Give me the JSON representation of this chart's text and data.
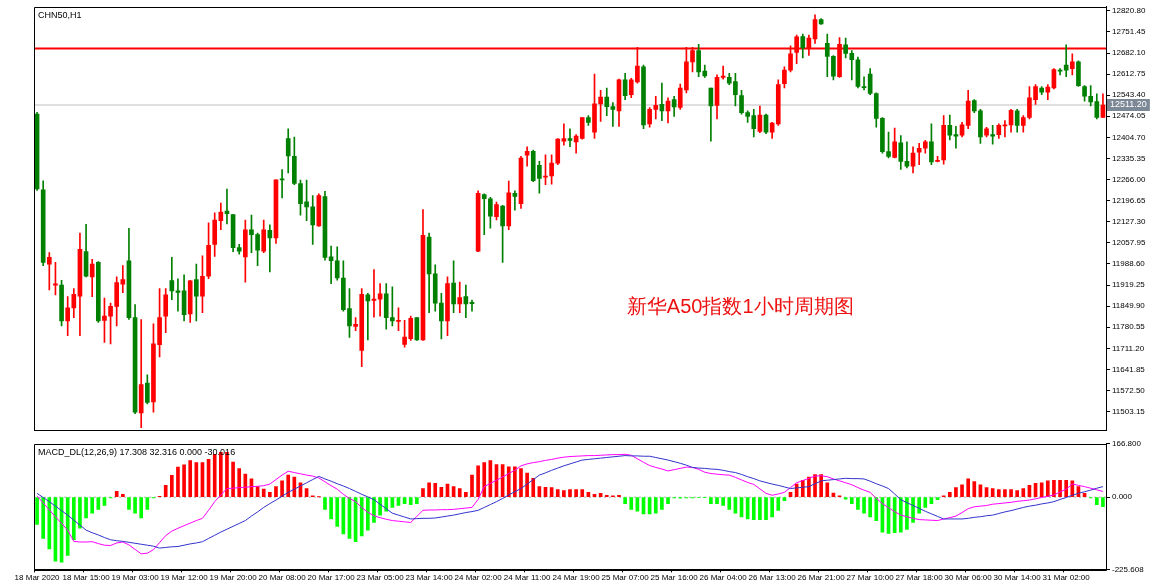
{
  "chart_data": [
    {
      "type": "candlestick",
      "title": "CHN50,H1",
      "categories": [
        null,
        null,
        null,
        null,
        null,
        null,
        null,
        null,
        null,
        null,
        null,
        null,
        null,
        null,
        null,
        null,
        null,
        null,
        null,
        null,
        null,
        null,
        null,
        null,
        null,
        null,
        null,
        null,
        null,
        null,
        null,
        null,
        null,
        null,
        null,
        null,
        null,
        null,
        null,
        null,
        null,
        null,
        null,
        null,
        null,
        null,
        null,
        null,
        null,
        null,
        null,
        null,
        null,
        null,
        null,
        null,
        null,
        null,
        null,
        null,
        null,
        null,
        null,
        null,
        null,
        null,
        null,
        null,
        null,
        null,
        null,
        null,
        null,
        null,
        null,
        null,
        null,
        null,
        null,
        null,
        null,
        null,
        null,
        null,
        null,
        null,
        null,
        null,
        null,
        null,
        null,
        null,
        null,
        null,
        null,
        null,
        null,
        null,
        null,
        null,
        null,
        null,
        null,
        null,
        null,
        null,
        null,
        null,
        null,
        null,
        null,
        null,
        null,
        null,
        null,
        null,
        null,
        null,
        null,
        null,
        null,
        null,
        null,
        null,
        null,
        null,
        null,
        null,
        null,
        null,
        null,
        null,
        null,
        null,
        null,
        null,
        null,
        null,
        null,
        null,
        null,
        null,
        null,
        null,
        null,
        null,
        null,
        null,
        null,
        null,
        null,
        null,
        null,
        null,
        null,
        null,
        null,
        null,
        null,
        null,
        null,
        null,
        null,
        null,
        null,
        null,
        null,
        null,
        null,
        null,
        null,
        null,
        null,
        null,
        null
      ],
      "ohlc": [
        [
          12481,
          12487,
          12230,
          12235
        ],
        [
          12232,
          12262,
          11983,
          11994
        ],
        [
          11988,
          12026,
          11903,
          12010
        ],
        [
          11919,
          11994,
          11887,
          11923
        ],
        [
          11919,
          11935,
          11785,
          11801
        ],
        [
          11801,
          11881,
          11753,
          11844
        ],
        [
          11844,
          11908,
          11812,
          11889
        ],
        [
          11883,
          12090,
          11753,
          12037
        ],
        [
          12029,
          12119,
          11946,
          11948
        ],
        [
          11946,
          12004,
          11881,
          11988
        ],
        [
          11994,
          11996,
          11796,
          11801
        ],
        [
          11803,
          11876,
          11731,
          11817
        ],
        [
          11817,
          11860,
          11726,
          11849
        ],
        [
          11849,
          11946,
          11785,
          11927
        ],
        [
          11922,
          11983,
          11894,
          11937
        ],
        [
          11999,
          12106,
          11806,
          11812
        ],
        [
          11812,
          11855,
          11496,
          11501
        ],
        [
          11499,
          11806,
          11450,
          11592
        ],
        [
          11597,
          11624,
          11528,
          11533
        ],
        [
          11535,
          11792,
          11501,
          11726
        ],
        [
          11723,
          11908,
          11683,
          11812
        ],
        [
          11817,
          11908,
          11763,
          11887
        ],
        [
          11934,
          12010,
          11871,
          11900
        ],
        [
          11900,
          11940,
          11833,
          11895
        ],
        [
          11900,
          11953,
          11801,
          11822
        ],
        [
          11824,
          11935,
          11796,
          11933
        ],
        [
          11937,
          11988,
          11801,
          11883
        ],
        [
          11883,
          12015,
          11828,
          11948
        ],
        [
          11948,
          12124,
          11940,
          12050
        ],
        [
          12053,
          12157,
          12013,
          12133
        ],
        [
          12131,
          12189,
          12101,
          12159
        ],
        [
          12162,
          12235,
          12120,
          12154
        ],
        [
          12151,
          12151,
          12029,
          12042
        ],
        [
          12042,
          12053,
          12021,
          12031
        ],
        [
          12012,
          12133,
          11929,
          12101
        ],
        [
          12101,
          12149,
          12026,
          12085
        ],
        [
          12085,
          12090,
          11983,
          12034
        ],
        [
          12031,
          12133,
          12026,
          12101
        ],
        [
          12099,
          12117,
          11962,
          12074
        ],
        [
          12074,
          12265,
          12056,
          12265
        ],
        [
          12267,
          12299,
          12206,
          12265
        ],
        [
          12401,
          12433,
          12288,
          12344
        ],
        [
          12342,
          12406,
          12249,
          12253
        ],
        [
          12253,
          12264,
          12149,
          12187
        ],
        [
          12193,
          12264,
          12131,
          12176
        ],
        [
          12176,
          12213,
          12053,
          12117
        ],
        [
          12114,
          12219,
          12112,
          12213
        ],
        [
          12210,
          12227,
          12001,
          12010
        ],
        [
          12012,
          12047,
          11924,
          11999
        ],
        [
          11999,
          12045,
          11935,
          11943
        ],
        [
          11942,
          11999,
          11833,
          11838
        ],
        [
          11842,
          11908,
          11747,
          11785
        ],
        [
          11783,
          11812,
          11769,
          11790
        ],
        [
          11704,
          11908,
          11651,
          11889
        ],
        [
          11887,
          11892,
          11739,
          11867
        ],
        [
          11869,
          11970,
          11814,
          11873
        ],
        [
          11873,
          11924,
          11817,
          11890
        ],
        [
          11890,
          11924,
          11774,
          11812
        ],
        [
          11812,
          11913,
          11785,
          11801
        ],
        [
          11800,
          11844,
          11769,
          11802
        ],
        [
          11724,
          11803,
          11715,
          11748
        ],
        [
          11743,
          11817,
          11737,
          11810
        ],
        [
          11812,
          11812,
          11737,
          11739
        ],
        [
          11739,
          12167,
          11737,
          12083
        ],
        [
          12077,
          12090,
          11828,
          11956
        ],
        [
          11956,
          11986,
          11833,
          11860
        ],
        [
          11860,
          11892,
          11742,
          11801
        ],
        [
          11801,
          11946,
          11753,
          11924
        ],
        [
          11926,
          11999,
          11828,
          11857
        ],
        [
          11857,
          11929,
          11828,
          11878
        ],
        [
          11881,
          11919,
          11812,
          11857
        ],
        [
          11862,
          11870,
          11833,
          11858
        ],
        [
          12031,
          12229,
          12029,
          12221
        ],
        [
          12217,
          12219,
          12085,
          12203
        ],
        [
          12203,
          12208,
          12106,
          12146
        ],
        [
          12144,
          12192,
          12133,
          12184
        ],
        [
          12179,
          12181,
          11994,
          12114
        ],
        [
          12114,
          12261,
          12101,
          12222
        ],
        [
          12221,
          12229,
          12165,
          12211
        ],
        [
          12187,
          12342,
          12171,
          12337
        ],
        [
          12346,
          12374,
          12310,
          12359
        ],
        [
          12359,
          12363,
          12259,
          12262
        ],
        [
          12313,
          12326,
          12221,
          12270
        ],
        [
          12274,
          12347,
          12249,
          12277
        ],
        [
          12278,
          12347,
          12251,
          12320
        ],
        [
          12320,
          12401,
          12315,
          12399
        ],
        [
          12392,
          12449,
          12379,
          12401
        ],
        [
          12401,
          12433,
          12374,
          12395
        ],
        [
          12390,
          12414,
          12353,
          12409
        ],
        [
          12401,
          12470,
          12399,
          12470
        ],
        [
          12470,
          12476,
          12444,
          12454
        ],
        [
          12422,
          12613,
          12401,
          12515
        ],
        [
          12515,
          12559,
          12457,
          12537
        ],
        [
          12537,
          12567,
          12476,
          12506
        ],
        [
          12506,
          12519,
          12441,
          12497
        ],
        [
          12492,
          12596,
          12441,
          12594
        ],
        [
          12594,
          12615,
          12529,
          12542
        ],
        [
          12545,
          12599,
          12535,
          12594
        ],
        [
          12587,
          12701,
          12583,
          12639
        ],
        [
          12637,
          12642,
          12433,
          12446
        ],
        [
          12449,
          12503,
          12438,
          12497
        ],
        [
          12497,
          12540,
          12465,
          12510
        ],
        [
          12513,
          12583,
          12460,
          12492
        ],
        [
          12492,
          12535,
          12452,
          12524
        ],
        [
          12529,
          12540,
          12474,
          12505
        ],
        [
          12503,
          12580,
          12497,
          12567
        ],
        [
          12561,
          12701,
          12551,
          12653
        ],
        [
          12653,
          12701,
          12620,
          12690
        ],
        [
          12690,
          12711,
          12604,
          12620
        ],
        [
          12623,
          12642,
          12602,
          12607
        ],
        [
          12567,
          12567,
          12392,
          12508
        ],
        [
          12510,
          12610,
          12465,
          12602
        ],
        [
          12602,
          12639,
          12596,
          12606
        ],
        [
          12602,
          12615,
          12578,
          12583
        ],
        [
          12588,
          12615,
          12508,
          12545
        ],
        [
          12542,
          12559,
          12481,
          12486
        ],
        [
          12486,
          12492,
          12454,
          12474
        ],
        [
          12476,
          12497,
          12406,
          12433
        ],
        [
          12424,
          12508,
          12420,
          12478
        ],
        [
          12478,
          12481,
          12417,
          12422
        ],
        [
          12422,
          12454,
          12401,
          12452
        ],
        [
          12449,
          12594,
          12444,
          12578
        ],
        [
          12581,
          12637,
          12567,
          12626
        ],
        [
          12626,
          12706,
          12620,
          12679
        ],
        [
          12684,
          12741,
          12647,
          12735
        ],
        [
          12736,
          12744,
          12666,
          12699
        ],
        [
          12699,
          12741,
          12674,
          12731
        ],
        [
          12728,
          12808,
          12714,
          12792
        ],
        [
          12792,
          12795,
          12776,
          12778
        ],
        [
          12714,
          12744,
          12604,
          12671
        ],
        [
          12671,
          12674,
          12594,
          12606
        ],
        [
          12604,
          12733,
          12602,
          12711
        ],
        [
          12709,
          12731,
          12666,
          12681
        ],
        [
          12681,
          12690,
          12594,
          12660
        ],
        [
          12660,
          12669,
          12567,
          12572
        ],
        [
          12572,
          12604,
          12561,
          12568
        ],
        [
          12613,
          12631,
          12545,
          12549
        ],
        [
          12549,
          12551,
          12438,
          12467
        ],
        [
          12467,
          12470,
          12353,
          12358
        ],
        [
          12358,
          12422,
          12337,
          12342
        ],
        [
          12339,
          12435,
          12337,
          12390
        ],
        [
          12387,
          12411,
          12299,
          12326
        ],
        [
          12326,
          12390,
          12304,
          12310
        ],
        [
          12310,
          12374,
          12288,
          12353
        ],
        [
          12356,
          12385,
          12315,
          12369
        ],
        [
          12369,
          12395,
          12353,
          12390
        ],
        [
          12390,
          12449,
          12315,
          12324
        ],
        [
          12326,
          12342,
          12324,
          12329
        ],
        [
          12331,
          12476,
          12317,
          12444
        ],
        [
          12444,
          12478,
          12396,
          12412
        ],
        [
          12414,
          12441,
          12369,
          12409
        ],
        [
          12412,
          12454,
          12406,
          12446
        ],
        [
          12444,
          12559,
          12433,
          12524
        ],
        [
          12526,
          12529,
          12486,
          12492
        ],
        [
          12492,
          12497,
          12385,
          12406
        ],
        [
          12412,
          12438,
          12406,
          12433
        ],
        [
          12414,
          12444,
          12382,
          12409
        ],
        [
          12414,
          12449,
          12401,
          12444
        ],
        [
          12442,
          12460,
          12406,
          12446
        ],
        [
          12446,
          12497,
          12422,
          12494
        ],
        [
          12492,
          12497,
          12422,
          12444
        ],
        [
          12444,
          12476,
          12422,
          12470
        ],
        [
          12470,
          12572,
          12465,
          12535
        ],
        [
          12529,
          12578,
          12513,
          12572
        ],
        [
          12567,
          12572,
          12545,
          12553
        ],
        [
          12553,
          12578,
          12529,
          12570
        ],
        [
          12567,
          12631,
          12564,
          12628
        ],
        [
          12626,
          12631,
          12610,
          12622
        ],
        [
          12642,
          12709,
          12604,
          12626
        ],
        [
          12631,
          12679,
          12610,
          12653
        ],
        [
          12653,
          12656,
          12572,
          12575
        ],
        [
          12572,
          12575,
          12524,
          12540
        ],
        [
          12540,
          12575,
          12508,
          12521
        ],
        [
          12522,
          12548,
          12465,
          12470
        ],
        [
          12470,
          12548,
          12470,
          12511
        ]
      ],
      "colors": [
        "#008000",
        "#008000",
        "#ff0000",
        "#ff0000",
        "#008000",
        "#ff0000",
        "#ff0000",
        "#ff0000",
        "#008000",
        "#ff0000",
        "#008000",
        "#ff0000",
        "#ff0000",
        "#ff0000",
        "#ff0000",
        "#008000",
        "#008000",
        "#ff0000",
        "#008000",
        "#ff0000",
        "#ff0000",
        "#ff0000",
        "#008000",
        "#008000",
        "#008000",
        "#ff0000",
        "#008000",
        "#ff0000",
        "#ff0000",
        "#ff0000",
        "#ff0000",
        "#008000",
        "#008000",
        "#008000",
        "#ff0000",
        "#008000",
        "#008000",
        "#ff0000",
        "#008000",
        "#ff0000",
        "#008000",
        "#008000",
        "#008000",
        "#008000",
        "#008000",
        "#008000",
        "#ff0000",
        "#008000",
        "#008000",
        "#008000",
        "#008000",
        "#008000",
        "#ff0000",
        "#ff0000",
        "#008000",
        "#ff0000",
        "#ff0000",
        "#008000",
        "#008000",
        "#ff0000",
        "#ff0000",
        "#ff0000",
        "#008000",
        "#ff0000",
        "#008000",
        "#008000",
        "#008000",
        "#ff0000",
        "#008000",
        "#ff0000",
        "#008000",
        "#008000",
        "#ff0000",
        "#008000",
        "#008000",
        "#ff0000",
        "#008000",
        "#ff0000",
        "#008000",
        "#ff0000",
        "#ff0000",
        "#008000",
        "#008000",
        "#ff0000",
        "#ff0000",
        "#ff0000",
        "#ff0000",
        "#008000",
        "#ff0000",
        "#ff0000",
        "#008000",
        "#ff0000",
        "#ff0000",
        "#008000",
        "#008000",
        "#ff0000",
        "#008000",
        "#ff0000",
        "#ff0000",
        "#008000",
        "#ff0000",
        "#ff0000",
        "#008000",
        "#ff0000",
        "#008000",
        "#ff0000",
        "#ff0000",
        "#ff0000",
        "#008000",
        "#008000",
        "#008000",
        "#ff0000",
        "#ff0000",
        "#008000",
        "#008000",
        "#008000",
        "#008000",
        "#008000",
        "#ff0000",
        "#008000",
        "#ff0000",
        "#ff0000",
        "#ff0000",
        "#ff0000",
        "#ff0000",
        "#008000",
        "#ff0000",
        "#ff0000",
        "#008000",
        "#008000",
        "#008000",
        "#ff0000",
        "#008000",
        "#008000",
        "#008000",
        "#008000",
        "#008000",
        "#008000",
        "#008000",
        "#008000",
        "#ff0000",
        "#008000",
        "#008000",
        "#ff0000",
        "#ff0000",
        "#ff0000",
        "#008000",
        "#ff0000",
        "#ff0000",
        "#008000",
        "#008000",
        "#ff0000",
        "#ff0000",
        "#008000",
        "#008000",
        "#ff0000",
        "#008000",
        "#ff0000",
        "#ff0000",
        "#ff0000",
        "#008000",
        "#ff0000",
        "#ff0000",
        "#ff0000",
        "#008000",
        "#ff0000",
        "#ff0000",
        "#008000",
        "#008000",
        "#ff0000",
        "#008000",
        "#008000",
        "#008000",
        "#008000",
        "#ff0000"
      ],
      "ylim": [
        11442,
        12834
      ],
      "yticks": [
        {
          "value": 12820.8,
          "label": "12820.80"
        },
        {
          "value": 12751.45,
          "label": "12751.45"
        },
        {
          "value": 12682.1,
          "label": "12682.10"
        },
        {
          "value": 12612.75,
          "label": "12612.75"
        },
        {
          "value": 12543.4,
          "label": "12543.40"
        },
        {
          "value": 12474.05,
          "label": "12474.05"
        },
        {
          "value": 12404.7,
          "label": "12404.70"
        },
        {
          "value": 12335.35,
          "label": "12335.35"
        },
        {
          "value": 12266,
          "label": "12266.00"
        },
        {
          "value": 12196.65,
          "label": "12196.65"
        },
        {
          "value": 12127.3,
          "label": "12127.30"
        },
        {
          "value": 12057.95,
          "label": "12057.95"
        },
        {
          "value": 11988.6,
          "label": "11988.60"
        },
        {
          "value": 11919.25,
          "label": "11919.25"
        },
        {
          "value": 11849.9,
          "label": "11849.90"
        },
        {
          "value": 11780.55,
          "label": "11780.55"
        },
        {
          "value": 11711.2,
          "label": "11711.20"
        },
        {
          "value": 11641.85,
          "label": "11641.85"
        },
        {
          "value": 11572.5,
          "label": "11572.50"
        },
        {
          "value": 11503.15,
          "label": "11503.15"
        }
      ],
      "tick_labels": "y",
      "ref_lines": [
        {
          "axis": "y",
          "value": 12697,
          "color": "#ff0000"
        },
        {
          "axis": "y",
          "value": 12511.2,
          "label": "12511.20",
          "color": "#c0c0c0"
        }
      ],
      "annotations": [
        "新华A50指数1小时周期图"
      ]
    },
    {
      "type": "bar",
      "title": "MACD_DL(12,26,9) 17.308 32.316 0.000 -30.016",
      "categories": [
        "18 Mar 2020",
        null,
        null,
        null,
        null,
        null,
        null,
        null,
        "18 Mar 15:00",
        null,
        null,
        null,
        null,
        null,
        null,
        null,
        "19 Mar 03:00",
        null,
        null,
        null,
        null,
        null,
        null,
        null,
        "19 Mar 12:00",
        null,
        null,
        null,
        null,
        null,
        null,
        null,
        "19 Mar 20:00",
        null,
        null,
        null,
        null,
        null,
        null,
        null,
        "20 Mar 08:00",
        null,
        null,
        null,
        null,
        null,
        null,
        null,
        "20 Mar 17:00",
        null,
        null,
        null,
        null,
        null,
        null,
        null,
        "23 Mar 05:00",
        null,
        null,
        null,
        null,
        null,
        null,
        null,
        "23 Mar 14:00",
        null,
        null,
        null,
        null,
        null,
        null,
        null,
        "24 Mar 02:00",
        null,
        null,
        null,
        null,
        null,
        null,
        null,
        "24 Mar 11:00",
        null,
        null,
        null,
        null,
        null,
        null,
        null,
        "24 Mar 19:00",
        null,
        null,
        null,
        null,
        null,
        null,
        null,
        "25 Mar 07:00",
        null,
        null,
        null,
        null,
        null,
        null,
        null,
        "25 Mar 16:00",
        null,
        null,
        null,
        null,
        null,
        null,
        null,
        "26 Mar 04:00",
        null,
        null,
        null,
        null,
        null,
        null,
        null,
        "26 Mar 13:00",
        null,
        null,
        null,
        null,
        null,
        null,
        null,
        "26 Mar 21:00",
        null,
        null,
        null,
        null,
        null,
        null,
        null,
        "27 Mar 10:00",
        null,
        null,
        null,
        null,
        null,
        null,
        null,
        "27 Mar 18:00",
        null,
        null,
        null,
        null,
        null,
        null,
        null,
        "30 Mar 06:00",
        null,
        null,
        null,
        null,
        null,
        null,
        null,
        "30 Mar 14:00",
        null,
        null,
        null,
        null,
        null,
        null,
        null,
        "31 Mar 02:00",
        null,
        null,
        null,
        null,
        null,
        null
      ],
      "series": [
        {
          "type": "bar",
          "values": [
            -85,
            -129,
            -162,
            -200,
            -203,
            -182,
            -133,
            -97,
            -65,
            -50,
            -38,
            -26,
            -2,
            18,
            9,
            -38,
            -50,
            -65,
            -38,
            -2,
            3,
            37,
            68,
            94,
            101,
            114,
            108,
            108,
            118,
            134,
            140,
            140,
            110,
            89,
            72,
            57,
            33,
            25,
            15,
            33,
            51,
            69,
            63,
            45,
            27,
            4,
            1,
            -38,
            -68,
            -91,
            -115,
            -129,
            -139,
            -121,
            -103,
            -79,
            -56,
            -44,
            -32,
            -26,
            -20,
            -23,
            -20,
            27,
            45,
            43,
            31,
            41,
            33,
            27,
            15,
            69,
            98,
            108,
            114,
            102,
            102,
            95,
            95,
            89,
            75,
            59,
            33,
            31,
            30,
            24,
            21,
            24,
            24,
            24,
            15,
            9,
            12,
            6,
            4,
            6,
            -20,
            -38,
            -44,
            -52,
            -52,
            -50,
            -38,
            -20,
            -2,
            -3,
            -2,
            -2,
            -1,
            -1,
            -20,
            -20,
            -26,
            -38,
            -50,
            -62,
            -68,
            -70,
            -70,
            -70,
            -62,
            -41,
            -11,
            15,
            41,
            53,
            63,
            71,
            71,
            45,
            13,
            4,
            -6,
            -20,
            -38,
            -50,
            -62,
            -73,
            -109,
            -113,
            -111,
            -109,
            -101,
            -79,
            -50,
            -32,
            -20,
            -8,
            4,
            15,
            30,
            39,
            57,
            49,
            39,
            30,
            27,
            24,
            24,
            24,
            21,
            27,
            37,
            43,
            45,
            51,
            53,
            53,
            53,
            51,
            33,
            12,
            -2,
            -23,
            -30
          ],
          "colors": [
            "#00ff00",
            "#00ff00",
            "#00ff00",
            "#00ff00",
            "#00ff00",
            "#00ff00",
            "#00ff00",
            "#00ff00",
            "#00ff00",
            "#00ff00",
            "#00ff00",
            "#00ff00",
            "#00ff00",
            "#ff0000",
            "#ff0000",
            "#00ff00",
            "#00ff00",
            "#00ff00",
            "#00ff00",
            "#00ff00",
            "#ff0000",
            "#ff0000",
            "#ff0000",
            "#ff0000",
            "#ff0000",
            "#ff0000",
            "#ff0000",
            "#ff0000",
            "#ff0000",
            "#ff0000",
            "#ff0000",
            "#ff0000",
            "#ff0000",
            "#ff0000",
            "#ff0000",
            "#ff0000",
            "#ff0000",
            "#ff0000",
            "#ff0000",
            "#ff0000",
            "#ff0000",
            "#ff0000",
            "#ff0000",
            "#ff0000",
            "#ff0000",
            "#ff0000",
            "#ff0000",
            "#00ff00",
            "#00ff00",
            "#00ff00",
            "#00ff00",
            "#00ff00",
            "#00ff00",
            "#00ff00",
            "#00ff00",
            "#00ff00",
            "#00ff00",
            "#00ff00",
            "#00ff00",
            "#00ff00",
            "#00ff00",
            "#00ff00",
            "#00ff00",
            "#ff0000",
            "#ff0000",
            "#ff0000",
            "#ff0000",
            "#ff0000",
            "#ff0000",
            "#ff0000",
            "#ff0000",
            "#ff0000",
            "#ff0000",
            "#ff0000",
            "#ff0000",
            "#ff0000",
            "#ff0000",
            "#ff0000",
            "#ff0000",
            "#ff0000",
            "#ff0000",
            "#ff0000",
            "#ff0000",
            "#ff0000",
            "#ff0000",
            "#ff0000",
            "#ff0000",
            "#ff0000",
            "#ff0000",
            "#ff0000",
            "#ff0000",
            "#ff0000",
            "#ff0000",
            "#ff0000",
            "#ff0000",
            "#ff0000",
            "#00ff00",
            "#00ff00",
            "#00ff00",
            "#00ff00",
            "#00ff00",
            "#00ff00",
            "#00ff00",
            "#00ff00",
            "#00ff00",
            "#00ff00",
            "#00ff00",
            "#00ff00",
            "#00ff00",
            "#00ff00",
            "#00ff00",
            "#00ff00",
            "#00ff00",
            "#00ff00",
            "#00ff00",
            "#00ff00",
            "#00ff00",
            "#00ff00",
            "#00ff00",
            "#00ff00",
            "#00ff00",
            "#00ff00",
            "#00ff00",
            "#ff0000",
            "#ff0000",
            "#ff0000",
            "#ff0000",
            "#ff0000",
            "#ff0000",
            "#ff0000",
            "#ff0000",
            "#ff0000",
            "#00ff00",
            "#00ff00",
            "#00ff00",
            "#00ff00",
            "#00ff00",
            "#00ff00",
            "#00ff00",
            "#00ff00",
            "#00ff00",
            "#00ff00",
            "#00ff00",
            "#00ff00",
            "#00ff00",
            "#00ff00",
            "#00ff00",
            "#00ff00",
            "#ff0000",
            "#ff0000",
            "#ff0000",
            "#ff0000",
            "#ff0000",
            "#ff0000",
            "#ff0000",
            "#ff0000",
            "#ff0000",
            "#ff0000",
            "#ff0000",
            "#ff0000",
            "#ff0000",
            "#ff0000",
            "#ff0000",
            "#ff0000",
            "#ff0000",
            "#ff0000",
            "#ff0000",
            "#ff0000",
            "#ff0000",
            "#ff0000",
            "#ff0000",
            "#ff0000",
            "#00ff00",
            "#00ff00",
            "#00ff00"
          ]
        },
        {
          "type": "line",
          "color": "#3333cc",
          "values": [
            12,
            -1,
            -14,
            -28,
            -42,
            -56,
            -72,
            -87,
            -103,
            -111,
            -118,
            -126,
            -133,
            -136,
            -138,
            -141,
            -144,
            -147,
            -150,
            -153,
            -159,
            -157,
            -155,
            -154,
            -150,
            -146,
            -143,
            -139,
            -129,
            -119,
            -109,
            -100,
            -91,
            -82,
            -73,
            -59,
            -46,
            -32,
            -20,
            -9,
            3,
            15,
            25,
            35,
            45,
            55,
            65,
            57,
            50,
            42,
            35,
            27,
            18,
            9,
            1,
            -8,
            -22,
            -36,
            -50,
            -56,
            -62,
            -68,
            -67,
            -66,
            -66,
            -65,
            -62,
            -59,
            -56,
            -52,
            -48,
            -45,
            -41,
            -32,
            -23,
            -14,
            -4,
            7,
            17,
            27,
            41,
            55,
            69,
            76,
            84,
            91,
            98,
            104,
            110,
            116,
            118,
            120,
            122,
            124,
            126,
            128,
            130,
            129,
            129,
            128,
            128,
            124,
            120,
            116,
            111,
            106,
            100,
            93,
            91,
            90,
            88,
            87,
            84,
            80,
            77,
            71,
            64,
            58,
            51,
            46,
            41,
            37,
            32,
            27,
            29,
            31,
            33,
            42,
            51,
            53,
            55,
            57,
            59,
            58,
            58,
            57,
            50,
            42,
            35,
            27,
            10,
            -8,
            -17,
            -26,
            -35,
            -44,
            -52,
            -60,
            -68,
            -68,
            -68,
            -68,
            -66,
            -63,
            -61,
            -58,
            -56,
            -51,
            -46,
            -42,
            -37,
            -32,
            -28,
            -25,
            -21,
            -18,
            -14,
            -7,
            -1,
            6,
            12,
            17,
            22,
            28,
            33
          ]
        },
        {
          "type": "line",
          "color": "#ff00ff",
          "values": [
            4,
            -18,
            -40,
            -61,
            -82,
            -103,
            -138,
            -140,
            -140,
            -139,
            -145,
            -150,
            -151,
            -143,
            -140,
            -149,
            -163,
            -177,
            -175,
            -164,
            -142,
            -120,
            -106,
            -97,
            -89,
            -81,
            -73,
            -66,
            -41,
            -14,
            7,
            27,
            28,
            30,
            31,
            33,
            34,
            36,
            41,
            55,
            69,
            81,
            77,
            73,
            69,
            66,
            60,
            48,
            36,
            25,
            9,
            -4,
            -14,
            -32,
            -47,
            -58,
            -64,
            -69,
            -73,
            -75,
            -77,
            -79,
            -60,
            -41,
            -40,
            -40,
            -39,
            -39,
            -38,
            -36,
            -34,
            -32,
            -7,
            33,
            43,
            53,
            63,
            74,
            84,
            98,
            104,
            108,
            111,
            115,
            118,
            122,
            125,
            127,
            128,
            129,
            130,
            130,
            131,
            132,
            133,
            133,
            134,
            131,
            120,
            109,
            99,
            93,
            88,
            82,
            86,
            90,
            94,
            93,
            87,
            78,
            74,
            72,
            70,
            69,
            62,
            54,
            46,
            40,
            26,
            12,
            6,
            10,
            15,
            30,
            45,
            52,
            59,
            66,
            67,
            64,
            57,
            51,
            45,
            39,
            30,
            22,
            15,
            -4,
            -20,
            -33,
            -45,
            -56,
            -61,
            -66,
            -70,
            -71,
            -72,
            -73,
            -68,
            -64,
            -59,
            -48,
            -36,
            -30,
            -28,
            -26,
            -22,
            -20,
            -18,
            -16,
            -13,
            -11,
            -9,
            -5,
            -1,
            3,
            7,
            16,
            25,
            41,
            37,
            33,
            28,
            23,
            18
          ]
        }
      ],
      "ylim": [
        -225.608,
        166.8
      ],
      "yticks": [
        {
          "value": 166.8,
          "label": "166.800"
        },
        {
          "value": 0,
          "label": "0.000"
        },
        {
          "value": -225.608,
          "label": "-225.608"
        }
      ],
      "ref_lines": [
        {
          "axis": "y",
          "value": 0,
          "color": "#b0b0b0",
          "line_style": "dotted"
        }
      ]
    }
  ]
}
